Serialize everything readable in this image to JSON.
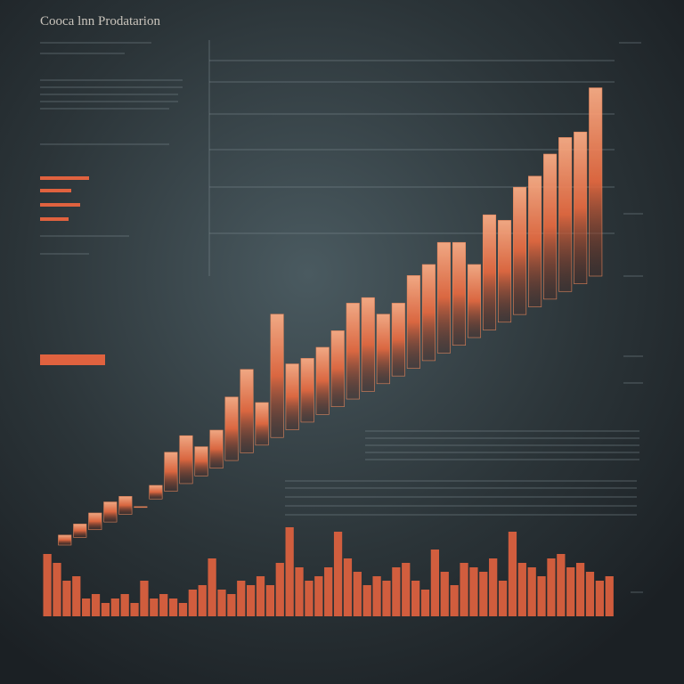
{
  "chart_data": [
    {
      "type": "bar",
      "title": "Cooca lnn Prodatarion",
      "color": "#f08a5d",
      "ylim": [
        0,
        100
      ],
      "values": [
        16,
        18,
        20,
        22,
        23,
        21,
        25,
        31,
        34,
        32,
        35,
        41,
        46,
        40,
        56,
        47,
        48,
        50,
        53,
        58,
        59,
        56,
        58,
        63,
        65,
        69,
        69,
        65,
        74,
        73,
        79,
        81,
        85,
        88,
        89,
        97
      ]
    },
    {
      "type": "bar",
      "color": "#e0623f",
      "ylim": [
        0,
        100
      ],
      "values": [
        70,
        60,
        40,
        45,
        20,
        25,
        15,
        20,
        25,
        15,
        40,
        20,
        25,
        20,
        15,
        30,
        35,
        65,
        30,
        25,
        40,
        35,
        45,
        35,
        60,
        100,
        55,
        40,
        45,
        55,
        95,
        65,
        50,
        35,
        45,
        40,
        55,
        60,
        40,
        30,
        75,
        50,
        35,
        60,
        55,
        50,
        65,
        40,
        95,
        60,
        55,
        45,
        65,
        70,
        55,
        60,
        50,
        40,
        45
      ]
    }
  ]
}
